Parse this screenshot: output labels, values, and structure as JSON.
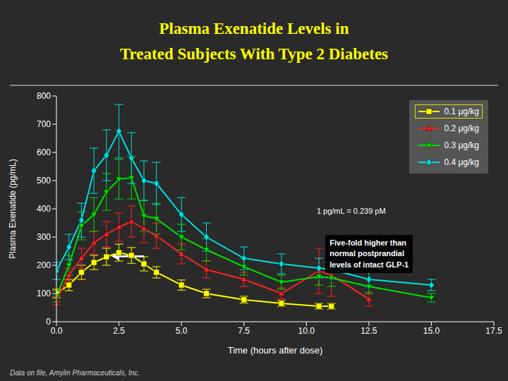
{
  "chart_data": {
    "type": "line",
    "title": "Plasma Exenatide Levels in\nTreated Subjects With Type 2 Diabetes",
    "x_label": "Time (hours after dose)",
    "y_label": "Plasma Exenatide (pg/mL)",
    "footnote": "Data on file, Amylin Pharmaceuticals, Inc.",
    "annotations": [
      "1 pg/mL = 0.239 pM",
      "Five-fold higher than\nnormal postprandial\nlevels of intact GLP-1"
    ],
    "xlim": [
      0,
      17.5
    ],
    "ylim": [
      0,
      800
    ],
    "xticks": [
      {
        "value": 0,
        "label": "0.0"
      },
      2.5,
      {
        "value": 5,
        "label": "5.0"
      },
      7.5,
      {
        "value": 10,
        "label": "10.0"
      },
      12.5,
      {
        "value": 15,
        "label": "15.0"
      },
      17.5
    ],
    "yticks": [
      0,
      100,
      200,
      300,
      400,
      500,
      600,
      700,
      800
    ],
    "grid": false,
    "legend": "upper right",
    "series": [
      {
        "name": "0.1 μg/kg",
        "color": "#ffff00",
        "marker": "square",
        "x": [
          0,
          0.5,
          1,
          1.5,
          2,
          2.5,
          3,
          3.5,
          4,
          5,
          6,
          7.5,
          9,
          10.5,
          11
        ],
        "values": [
          100,
          130,
          175,
          210,
          230,
          245,
          235,
          205,
          175,
          130,
          100,
          78,
          65,
          55,
          55
        ],
        "errors": [
          15,
          20,
          25,
          25,
          30,
          30,
          28,
          25,
          20,
          18,
          15,
          12,
          10,
          10,
          10
        ]
      },
      {
        "name": "0.2 μg/kg",
        "color": "#ff2222",
        "marker": "triangle-up",
        "x": [
          0,
          0.5,
          1,
          1.5,
          2,
          2.5,
          3,
          3.5,
          4,
          5,
          6,
          7.5,
          9,
          10.5,
          11,
          12.5
        ],
        "values": [
          75,
          165,
          225,
          280,
          310,
          335,
          355,
          330,
          305,
          240,
          185,
          150,
          100,
          180,
          165,
          80
        ],
        "errors": [
          15,
          25,
          35,
          40,
          45,
          50,
          55,
          50,
          45,
          35,
          30,
          25,
          20,
          80,
          75,
          25
        ]
      },
      {
        "name": "0.3 μg/kg",
        "color": "#00dd00",
        "marker": "triangle-down",
        "x": [
          0,
          0.5,
          1,
          1.5,
          2,
          2.5,
          3,
          3.5,
          4,
          5,
          6,
          7.5,
          9,
          10.5,
          11,
          12.5,
          15
        ],
        "values": [
          90,
          200,
          340,
          380,
          460,
          505,
          510,
          375,
          365,
          300,
          255,
          195,
          140,
          160,
          155,
          125,
          85
        ],
        "errors": [
          20,
          35,
          50,
          60,
          65,
          70,
          75,
          55,
          55,
          45,
          40,
          30,
          25,
          30,
          30,
          25,
          15
        ]
      },
      {
        "name": "0.4 μg/kg",
        "color": "#00dddd",
        "marker": "diamond",
        "x": [
          0,
          0.5,
          1,
          1.5,
          2,
          2.5,
          3,
          3.5,
          4,
          5,
          6,
          7.5,
          9,
          10.5,
          11,
          12.5,
          15
        ],
        "values": [
          180,
          265,
          360,
          535,
          590,
          675,
          580,
          500,
          490,
          380,
          300,
          225,
          205,
          190,
          185,
          150,
          130
        ],
        "errors": [
          30,
          45,
          60,
          80,
          90,
          95,
          90,
          70,
          75,
          60,
          50,
          40,
          35,
          35,
          30,
          25,
          20
        ]
      }
    ]
  }
}
